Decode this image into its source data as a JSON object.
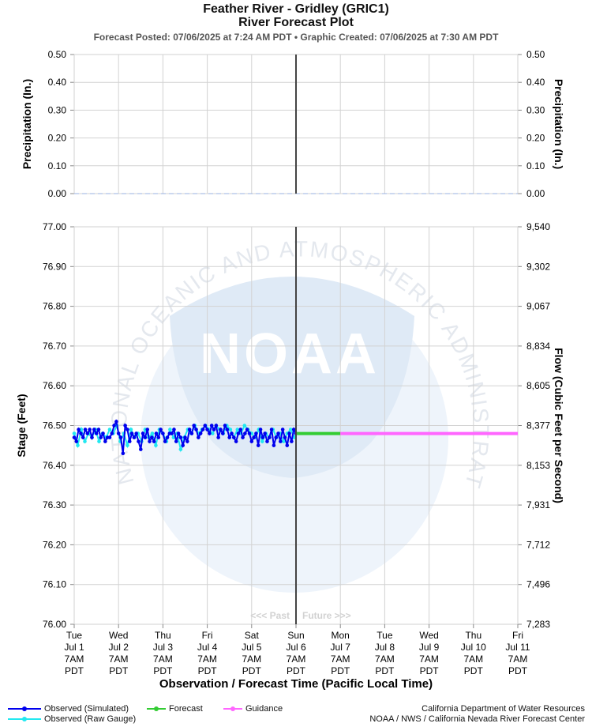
{
  "header": {
    "title": "Feather River - Gridley (GRIC1)",
    "subtitle": "River Forecast Plot",
    "posted": "Forecast Posted: 07/06/2025 at 7:24 AM PDT  •  Graphic Created: 07/06/2025 at 7:30 AM PDT"
  },
  "chart_data": [
    {
      "type": "line",
      "name": "precipitation",
      "ylabel_left": "Precipitation (In.)",
      "ylabel_right": "Precipitation (In.)",
      "ylim": [
        0,
        0.5
      ],
      "yticks": [
        "0.00",
        "0.10",
        "0.20",
        "0.30",
        "0.40",
        "0.50"
      ],
      "series": [
        {
          "values": [
            0,
            0,
            0,
            0,
            0,
            0,
            0,
            0,
            0,
            0
          ]
        }
      ]
    },
    {
      "type": "line",
      "name": "stage",
      "ylabel_left": "Stage (Feet)",
      "ylabel_right": "Flow (Cubic Feet per Second)",
      "xlabel": "Observation / Forecast Time (Pacific Local Time)",
      "ylim": [
        76.0,
        77.0
      ],
      "yticks": [
        "76.00",
        "76.10",
        "76.20",
        "76.30",
        "76.40",
        "76.50",
        "76.60",
        "76.70",
        "76.80",
        "76.90",
        "77.00"
      ],
      "yticks_right": [
        "7,283",
        "7,496",
        "7,712",
        "7,931",
        "8,153",
        "8,377",
        "8,605",
        "8,834",
        "9,067",
        "9,302",
        "9,540"
      ],
      "x_ticks": [
        [
          "Tue",
          "Jul 1",
          "7AM",
          "PDT"
        ],
        [
          "Wed",
          "Jul 2",
          "7AM",
          "PDT"
        ],
        [
          "Thu",
          "Jul 3",
          "7AM",
          "PDT"
        ],
        [
          "Fri",
          "Jul 4",
          "7AM",
          "PDT"
        ],
        [
          "Sat",
          "Jul 5",
          "7AM",
          "PDT"
        ],
        [
          "Sun",
          "Jul 6",
          "7AM",
          "PDT"
        ],
        [
          "Mon",
          "Jul 7",
          "7AM",
          "PDT"
        ],
        [
          "Tue",
          "Jul 8",
          "7AM",
          "PDT"
        ],
        [
          "Wed",
          "Jul 9",
          "7AM",
          "PDT"
        ],
        [
          "Thu",
          "Jul 10",
          "7AM",
          "PDT"
        ],
        [
          "Fri",
          "Jul 11",
          "7AM",
          "PDT"
        ]
      ],
      "past_label": "<<< Past",
      "future_label": "Future >>>",
      "watermark": {
        "logo": "NOAA",
        "ring": "NATIONAL OCEANIC AND ATMOSPHERIC ADMINISTRATION • U.S. DEPARTMENT OF COMMERCE"
      },
      "series": [
        {
          "name": "Observed (Simulated)",
          "color": "#0000ee",
          "x_days": [
            0.0,
            0.05,
            0.1,
            0.15,
            0.2,
            0.25,
            0.3,
            0.35,
            0.4,
            0.45,
            0.5,
            0.55,
            0.6,
            0.65,
            0.7,
            0.75,
            0.8,
            0.85,
            0.9,
            0.95,
            1.0,
            1.05,
            1.1,
            1.15,
            1.2,
            1.25,
            1.3,
            1.35,
            1.4,
            1.45,
            1.5,
            1.55,
            1.6,
            1.65,
            1.7,
            1.75,
            1.8,
            1.85,
            1.9,
            1.95,
            2.0,
            2.05,
            2.1,
            2.15,
            2.2,
            2.25,
            2.3,
            2.35,
            2.4,
            2.45,
            2.5,
            2.55,
            2.6,
            2.65,
            2.7,
            2.75,
            2.8,
            2.85,
            2.9,
            2.95,
            3.0,
            3.05,
            3.1,
            3.15,
            3.2,
            3.25,
            3.3,
            3.35,
            3.4,
            3.45,
            3.5,
            3.55,
            3.6,
            3.65,
            3.7,
            3.75,
            3.8,
            3.85,
            3.9,
            3.95,
            4.0,
            4.05,
            4.1,
            4.15,
            4.2,
            4.25,
            4.3,
            4.35,
            4.4,
            4.45,
            4.5,
            4.55,
            4.6,
            4.65,
            4.7,
            4.75,
            4.8,
            4.85,
            4.9,
            4.95,
            5.0
          ],
          "values": [
            76.47,
            76.46,
            76.49,
            76.48,
            76.47,
            76.49,
            76.48,
            76.49,
            76.47,
            76.49,
            76.48,
            76.49,
            76.47,
            76.48,
            76.46,
            76.47,
            76.47,
            76.48,
            76.5,
            76.51,
            76.48,
            76.47,
            76.43,
            76.5,
            76.49,
            76.46,
            76.48,
            76.47,
            76.48,
            76.46,
            76.44,
            76.48,
            76.47,
            76.49,
            76.46,
            76.47,
            76.46,
            76.48,
            76.47,
            76.49,
            76.48,
            76.46,
            76.47,
            76.48,
            76.48,
            76.49,
            76.46,
            76.48,
            76.47,
            76.45,
            76.47,
            76.46,
            76.49,
            76.48,
            76.5,
            76.49,
            76.47,
            76.48,
            76.49,
            76.5,
            76.49,
            76.48,
            76.5,
            76.49,
            76.5,
            76.47,
            76.49,
            76.48,
            76.5,
            76.49,
            76.47,
            76.48,
            76.47,
            76.46,
            76.48,
            76.49,
            76.47,
            76.48,
            76.49,
            76.48,
            76.46,
            76.47,
            76.48,
            76.45,
            76.49,
            76.47,
            76.48,
            76.46,
            76.47,
            76.49,
            76.45,
            76.47,
            76.48,
            76.46,
            76.49,
            76.47,
            76.45,
            76.48,
            76.46,
            76.49,
            76.48
          ]
        },
        {
          "name": "Observed (Raw Gauge)",
          "color": "#22e8f0",
          "x_days": [
            0.0,
            0.08,
            0.16,
            0.24,
            0.32,
            0.4,
            0.48,
            0.56,
            0.64,
            0.72,
            0.8,
            0.88,
            0.96,
            1.04,
            1.12,
            1.2,
            1.28,
            1.36,
            1.44,
            1.52,
            1.6,
            1.68,
            1.76,
            1.84,
            1.92,
            2.0,
            2.08,
            2.16,
            2.24,
            2.32,
            2.4,
            2.48,
            2.56,
            2.64,
            2.72,
            2.8,
            2.88,
            2.96,
            3.04,
            3.12,
            3.2,
            3.28,
            3.36,
            3.44,
            3.52,
            3.6,
            3.68,
            3.76,
            3.84,
            3.92,
            4.0,
            4.08,
            4.16,
            4.24,
            4.32,
            4.4,
            4.48,
            4.56,
            4.64,
            4.72,
            4.8,
            4.88,
            4.96,
            5.0
          ],
          "values": [
            76.48,
            76.45,
            76.49,
            76.46,
            76.48,
            76.47,
            76.49,
            76.46,
            76.48,
            76.47,
            76.49,
            76.48,
            76.5,
            76.46,
            76.48,
            76.45,
            76.49,
            76.47,
            76.48,
            76.46,
            76.49,
            76.47,
            76.48,
            76.45,
            76.49,
            76.48,
            76.46,
            76.49,
            76.47,
            76.48,
            76.44,
            76.47,
            76.49,
            76.48,
            76.5,
            76.48,
            76.49,
            76.5,
            76.49,
            76.48,
            76.5,
            76.49,
            76.48,
            76.5,
            76.49,
            76.47,
            76.49,
            76.48,
            76.5,
            76.49,
            76.48,
            76.47,
            76.49,
            76.46,
            76.48,
            76.47,
            76.49,
            76.47,
            76.48,
            76.46,
            76.48,
            76.49,
            76.47,
            76.48
          ]
        },
        {
          "name": "Forecast",
          "color": "#33cc33",
          "x_days": [
            5.0,
            6.0
          ],
          "values": [
            76.48,
            76.48
          ]
        },
        {
          "name": "Guidance",
          "color": "#ff66ff",
          "x_days": [
            6.0,
            10.0
          ],
          "values": [
            76.48,
            76.48
          ]
        }
      ]
    }
  ],
  "legend": {
    "observed_simulated": "Observed (Simulated)",
    "observed_raw": "Observed (Raw Gauge)",
    "forecast": "Forecast",
    "guidance": "Guidance"
  },
  "credits": {
    "line1": "California Department of Water Resources",
    "line2": "NOAA / NWS / California Nevada River Forecast Center"
  }
}
